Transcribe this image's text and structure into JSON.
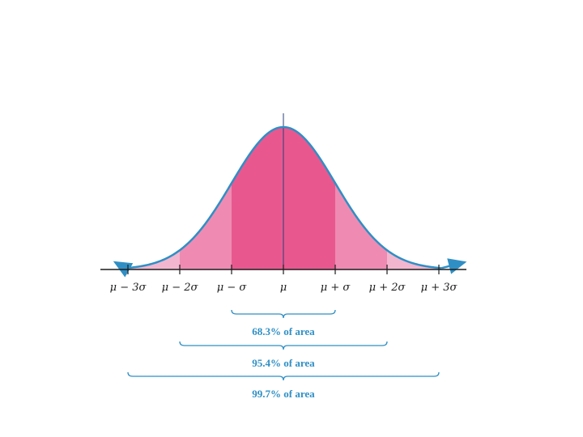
{
  "chart_data": {
    "type": "area",
    "curve": "normal distribution",
    "x_ticks": [
      "μ − 3σ",
      "μ − 2σ",
      "μ − σ",
      "μ",
      "μ + σ",
      "μ + 2σ",
      "μ + 3σ"
    ],
    "x_ticks_in_sigma": [
      -3,
      -2,
      -1,
      0,
      1,
      2,
      3
    ],
    "bands": [
      {
        "from_sigma": -1,
        "to_sigma": 1,
        "color": "#e8588f",
        "area_label": "68.3% of area"
      },
      {
        "from_sigma": -2,
        "to_sigma": 2,
        "color": "#ef8bb2",
        "area_label": "95.4% of area"
      },
      {
        "from_sigma": -3,
        "to_sigma": 3,
        "color": "#f3b6cf",
        "area_label": "99.7% of area"
      }
    ],
    "curve_color": "#2f8fc4",
    "axis_color": "#1c1c1c",
    "bracket_color": "#2f8fc4",
    "mean_line_color": "#2a3f7a"
  }
}
